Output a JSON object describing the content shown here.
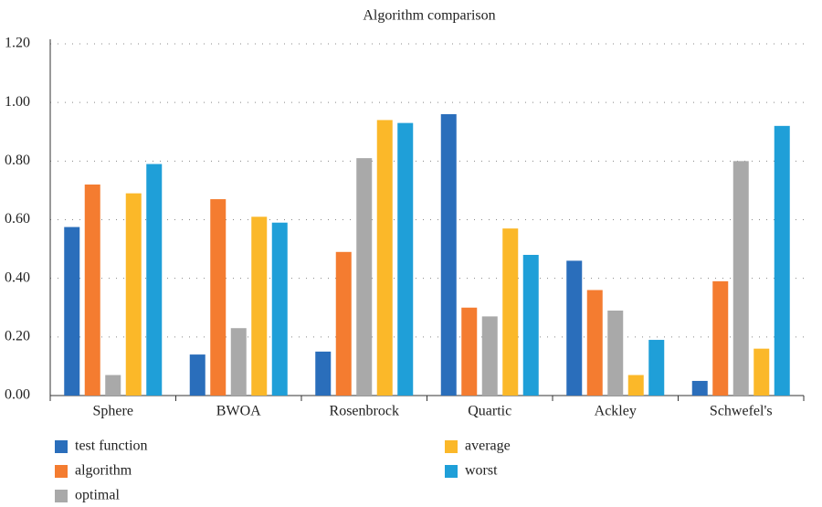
{
  "chart_data": {
    "type": "bar",
    "title": "Algorithm comparison",
    "categories": [
      "Sphere",
      "BWOA",
      "Rosenbrock",
      "Quartic",
      "Ackley",
      "Schwefel's"
    ],
    "series": [
      {
        "name": "test function",
        "color": "#2a6ebb",
        "values": [
          0.575,
          0.14,
          0.15,
          0.96,
          0.46,
          0.05
        ]
      },
      {
        "name": "algorithm",
        "color": "#f47c30",
        "values": [
          0.72,
          0.67,
          0.49,
          0.3,
          0.36,
          0.39
        ]
      },
      {
        "name": "optimal",
        "color": "#a9a9a9",
        "values": [
          0.07,
          0.23,
          0.81,
          0.27,
          0.29,
          0.8
        ]
      },
      {
        "name": "average",
        "color": "#fbb829",
        "values": [
          0.69,
          0.61,
          0.94,
          0.57,
          0.07,
          0.16
        ]
      },
      {
        "name": "worst",
        "color": "#1f9fd8",
        "values": [
          0.79,
          0.59,
          0.93,
          0.48,
          0.19,
          0.92
        ]
      }
    ],
    "ylim": [
      0,
      1.2
    ],
    "yticks": [
      {
        "value": 0,
        "label": "0.00"
      },
      {
        "value": 0.2,
        "label": "0.20"
      },
      {
        "value": 0.4,
        "label": "0.40"
      },
      {
        "value": 0.6,
        "label": "0.60"
      },
      {
        "value": 0.8,
        "label": "0.80"
      },
      {
        "value": 1.0,
        "label": "1.00"
      },
      {
        "value": 1.2,
        "label": "1.20"
      }
    ],
    "grid": true
  }
}
